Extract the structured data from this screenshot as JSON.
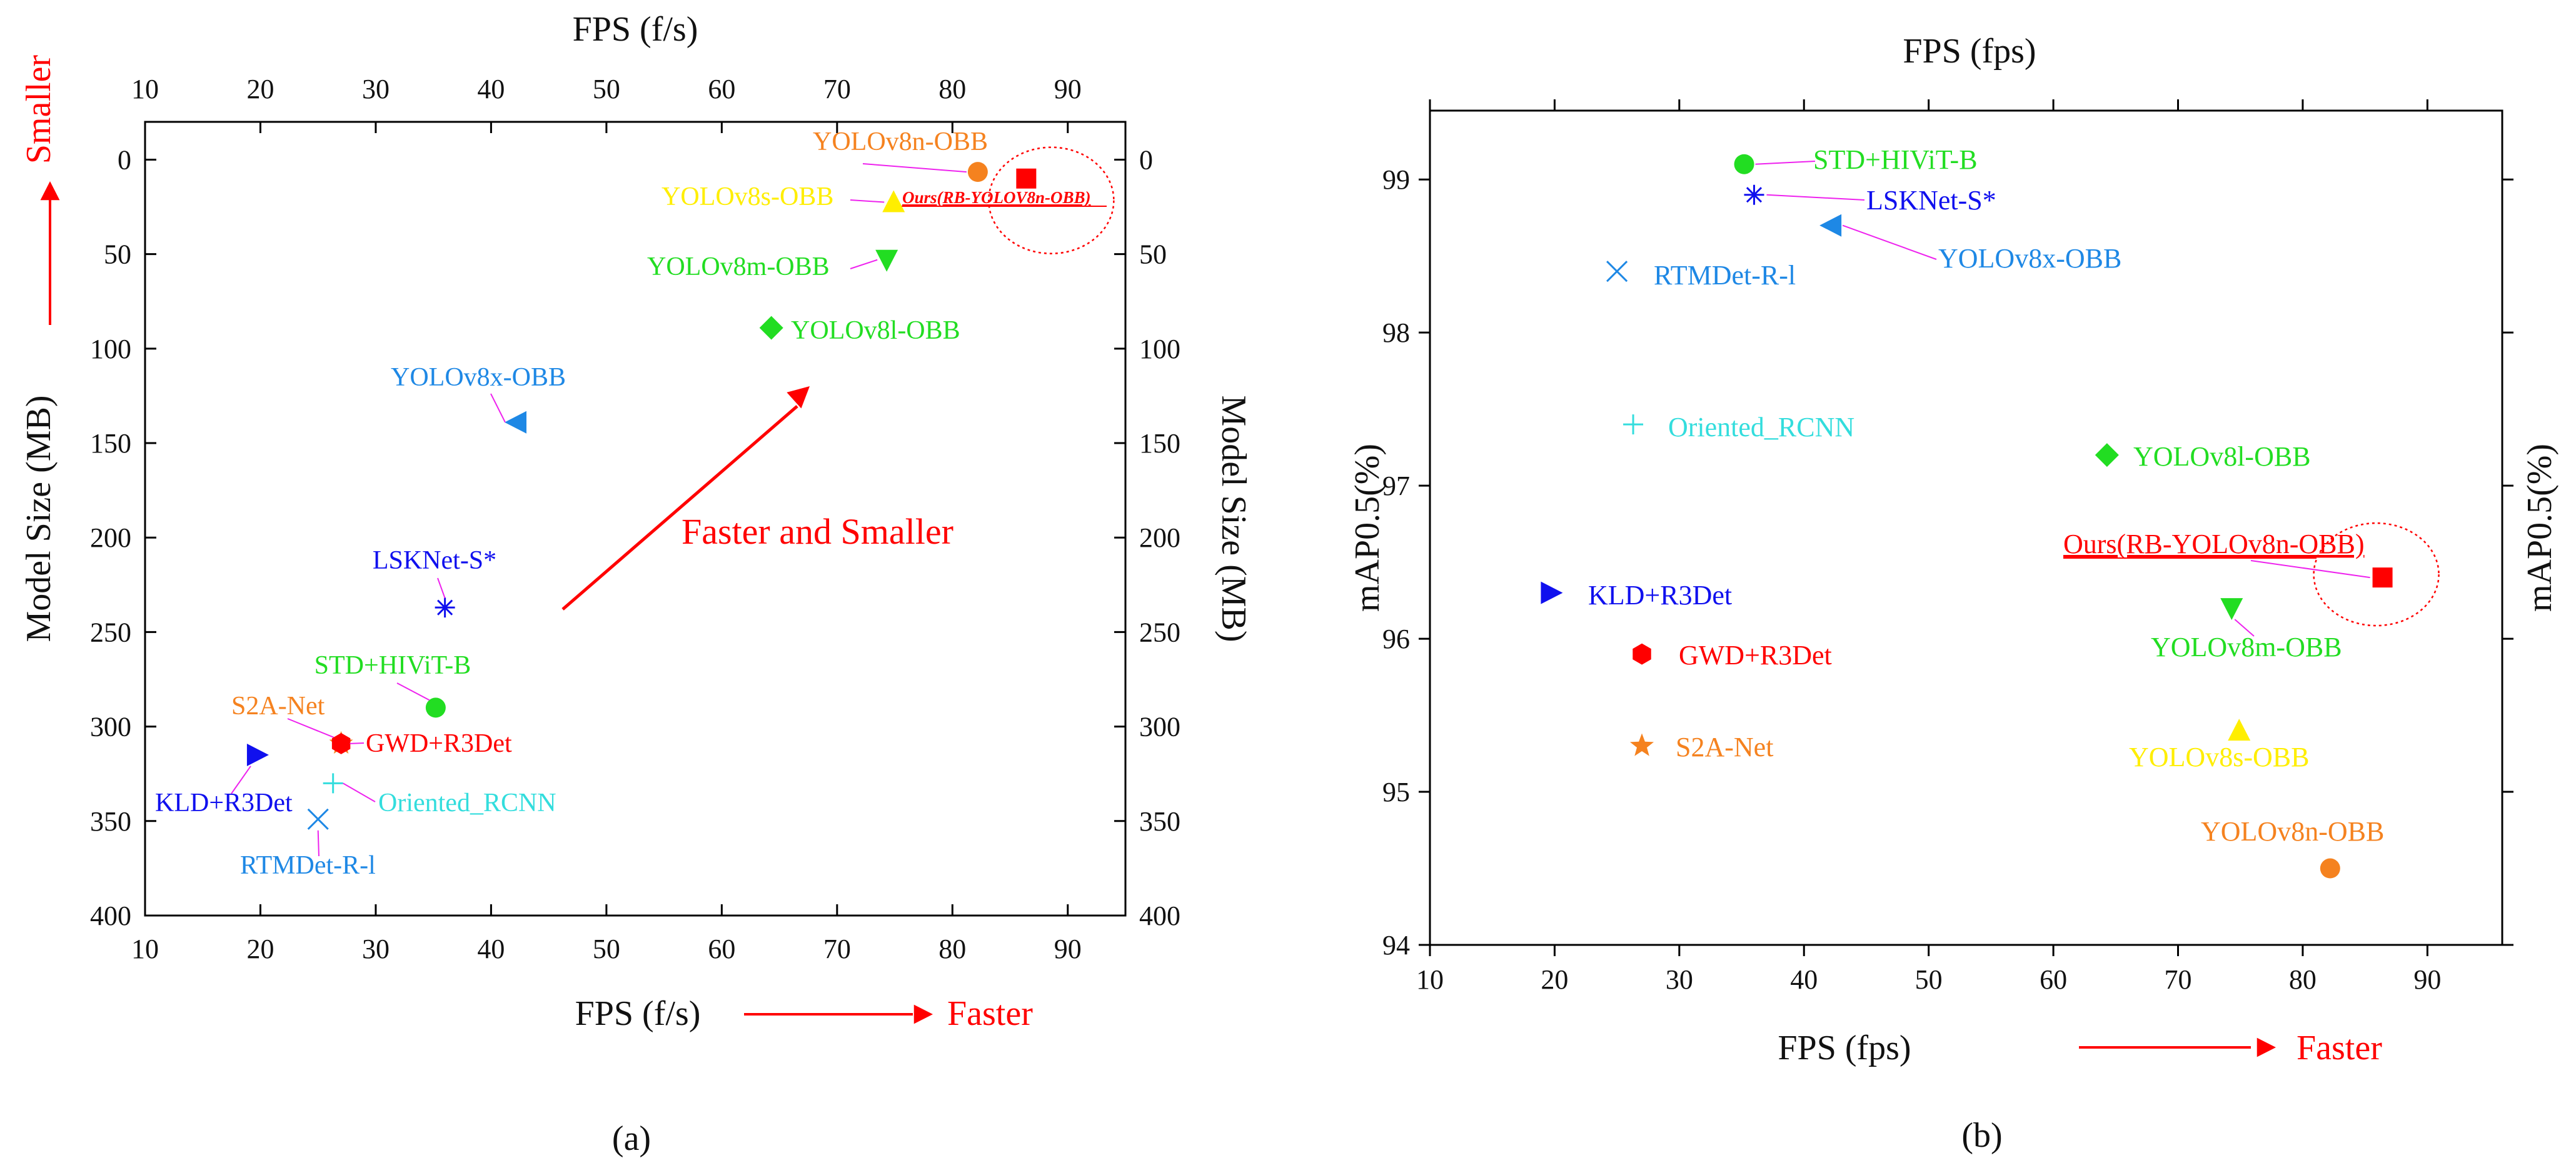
{
  "colors": {
    "red": "#ff0000",
    "orange": "#f5821f",
    "yellow": "#ffee00",
    "green": "#22dd22",
    "blue_mid": "#1e88e5",
    "blue_deep": "#1010ee",
    "cyan": "#33dddd",
    "magenta": "#ee22ee"
  },
  "chart_data": [
    {
      "type": "scatter",
      "panel_label": "(a)",
      "panel_letter": "a",
      "xlabel_bottom": "FPS (f/s)",
      "xlabel_top": "FPS (f/s)",
      "ylabel_left": "Model Size (MB)",
      "ylabel_right": "Model Size (MB)",
      "xlim": [
        10,
        95
      ],
      "ylim": [
        400,
        -20
      ],
      "x_ticks": [
        10,
        20,
        30,
        40,
        50,
        60,
        70,
        80,
        90
      ],
      "y_ticks": [
        0,
        50,
        100,
        150,
        200,
        250,
        300,
        350,
        400
      ],
      "annotations": {
        "faster": "Faster",
        "smaller": "Smaller",
        "faster_and_smaller": "Faster and Smaller"
      },
      "points": [
        {
          "name": "YOLOv8n-OBB",
          "x": 82.2,
          "y": 6.5,
          "marker": "circle",
          "color": "orange"
        },
        {
          "name": "Ours(RB-YOLOV8n-OBB)",
          "x": 86.4,
          "y": 10,
          "marker": "square",
          "color": "red"
        },
        {
          "name": "YOLOv8s-OBB",
          "x": 74.9,
          "y": 22.5,
          "marker": "triangle-up",
          "color": "yellow"
        },
        {
          "name": "YOLOv8m-OBB",
          "x": 74.3,
          "y": 53,
          "marker": "triangle-down",
          "color": "green"
        },
        {
          "name": "YOLOv8l-OBB",
          "x": 64.3,
          "y": 89,
          "marker": "diamond",
          "color": "green"
        },
        {
          "name": "YOLOv8x-OBB",
          "x": 42.2,
          "y": 139,
          "marker": "triangle-left",
          "color": "blue_mid"
        },
        {
          "name": "LSKNet-S*",
          "x": 36,
          "y": 237,
          "marker": "asterisk",
          "color": "blue_deep"
        },
        {
          "name": "STD+HIViT-B",
          "x": 35.2,
          "y": 290,
          "marker": "circle",
          "color": "green"
        },
        {
          "name": "S2A-Net",
          "x": 27,
          "y": 309,
          "marker": "star",
          "color": "orange"
        },
        {
          "name": "GWD+R3Det",
          "x": 27,
          "y": 309,
          "marker": "hexagon",
          "color": "red"
        },
        {
          "name": "KLD+R3Det",
          "x": 19.7,
          "y": 315,
          "marker": "triangle-right",
          "color": "blue_deep"
        },
        {
          "name": "Oriented_RCNN",
          "x": 26.3,
          "y": 330,
          "marker": "plus",
          "color": "cyan"
        },
        {
          "name": "RTMDet-R-l",
          "x": 25,
          "y": 349,
          "marker": "x",
          "color": "blue_mid"
        }
      ]
    },
    {
      "type": "scatter",
      "panel_label": "(b)",
      "panel_letter": "b",
      "xlabel_bottom": "FPS (fps)",
      "xlabel_top": "FPS (fps)",
      "ylabel_left": "mAP0.5(%)",
      "ylabel_right": "mAP0.5(%)",
      "xlim": [
        10,
        96
      ],
      "ylim": [
        94,
        99.45
      ],
      "x_ticks": [
        10,
        20,
        30,
        40,
        50,
        60,
        70,
        80,
        90
      ],
      "y_ticks": [
        94,
        95,
        96,
        97,
        98,
        99
      ],
      "annotations": {
        "faster": "Faster"
      },
      "points": [
        {
          "name": "STD+HIViT-B",
          "x": 35.2,
          "y": 99.1,
          "marker": "circle",
          "color": "green"
        },
        {
          "name": "LSKNet-S*",
          "x": 36,
          "y": 98.9,
          "marker": "asterisk",
          "color": "blue_deep"
        },
        {
          "name": "YOLOv8x-OBB",
          "x": 42.2,
          "y": 98.7,
          "marker": "triangle-left",
          "color": "blue_mid"
        },
        {
          "name": "RTMDet-R-l",
          "x": 25,
          "y": 98.4,
          "marker": "x",
          "color": "blue_mid"
        },
        {
          "name": "Oriented_RCNN",
          "x": 26.3,
          "y": 97.4,
          "marker": "plus",
          "color": "cyan"
        },
        {
          "name": "YOLOv8l-OBB",
          "x": 64.3,
          "y": 97.2,
          "marker": "diamond",
          "color": "green"
        },
        {
          "name": "Ours(RB-YOLOv8n-OBB)",
          "x": 86.4,
          "y": 96.4,
          "marker": "square",
          "color": "red"
        },
        {
          "name": "KLD+R3Det",
          "x": 19.7,
          "y": 96.3,
          "marker": "triangle-right",
          "color": "blue_deep"
        },
        {
          "name": "YOLOv8m-OBB",
          "x": 74.3,
          "y": 96.2,
          "marker": "triangle-down",
          "color": "green"
        },
        {
          "name": "GWD+R3Det",
          "x": 27,
          "y": 95.9,
          "marker": "hexagon",
          "color": "red"
        },
        {
          "name": "YOLOv8s-OBB",
          "x": 74.9,
          "y": 95.4,
          "marker": "triangle-up",
          "color": "yellow"
        },
        {
          "name": "S2A-Net",
          "x": 27,
          "y": 95.3,
          "marker": "star",
          "color": "orange"
        },
        {
          "name": "YOLOv8n-OBB",
          "x": 82.2,
          "y": 94.5,
          "marker": "circle",
          "color": "orange"
        }
      ]
    }
  ]
}
